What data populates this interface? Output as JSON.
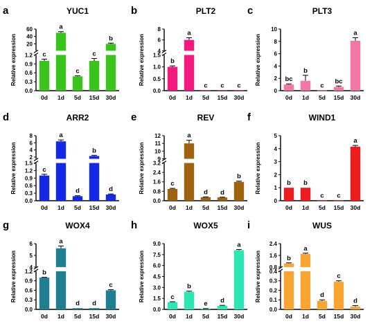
{
  "chart_data": [
    {
      "type": "bar",
      "letter": "a",
      "title": "YUC1",
      "ylabel": "Relative expression",
      "color": "#39c51c",
      "categories": [
        "0d",
        "1d",
        "5d",
        "15d",
        "30d"
      ],
      "values": [
        1.0,
        50,
        0.48,
        1.0,
        20
      ],
      "errors": [
        0.06,
        3,
        0.02,
        0.08,
        2
      ],
      "letters": [
        "c",
        "a",
        "c",
        "c",
        "b"
      ],
      "ylim": [
        0,
        60
      ],
      "axis_break": {
        "lower_max": 1.2,
        "upper_min": 1.2
      },
      "yticks_lower": [
        "0.0",
        "0.3",
        "0.6",
        "0.9",
        "1.2"
      ],
      "yticks_upper": [
        "20",
        "40",
        "60"
      ]
    },
    {
      "type": "bar",
      "letter": "b",
      "title": "PLT2",
      "ylabel": "Relative expression",
      "color": "#f3197f",
      "categories": [
        "0d",
        "1d",
        "5d",
        "15d",
        "30d"
      ],
      "values": [
        1.0,
        6.0,
        0.02,
        0.02,
        0.02
      ],
      "errors": [
        0.04,
        0.4,
        0,
        0,
        0
      ],
      "letters": [
        "b",
        "a",
        "c",
        "c",
        "c"
      ],
      "ylim": [
        0,
        8
      ],
      "axis_break": {
        "lower_max": 1.5,
        "upper_min": 4
      },
      "yticks_lower": [
        "0.0",
        "0.5",
        "1.0",
        "1.5"
      ],
      "yticks_upper": [
        "4",
        "6",
        "8"
      ]
    },
    {
      "type": "bar",
      "letter": "c",
      "title": "PLT3",
      "ylabel": "Relative expression",
      "color": "#f476a7",
      "categories": [
        "0d",
        "1d",
        "5d",
        "15d",
        "30d"
      ],
      "values": [
        1.0,
        1.6,
        0.05,
        0.6,
        8.1
      ],
      "errors": [
        0.1,
        0.9,
        0,
        0.15,
        0.5
      ],
      "letters": [
        "bc",
        "b",
        "c",
        "bc",
        "a"
      ],
      "ylim": [
        0,
        10
      ],
      "yticks": [
        "0",
        "2",
        "4",
        "6",
        "8",
        "10"
      ]
    },
    {
      "type": "bar",
      "letter": "d",
      "title": "ARR2",
      "ylabel": "Relative expression",
      "color": "#1229e8",
      "categories": [
        "0d",
        "1d",
        "5d",
        "15d",
        "30d"
      ],
      "values": [
        1.0,
        6.4,
        0.18,
        2.3,
        0.25
      ],
      "errors": [
        0.05,
        0.4,
        0.02,
        0.2,
        0.02
      ],
      "letters": [
        "c",
        "a",
        "d",
        "b",
        "d"
      ],
      "ylim": [
        0,
        8
      ],
      "axis_break": {
        "lower_max": 1.5,
        "upper_min": 1.5
      },
      "yticks_lower": [
        "0.0",
        "0.3",
        "0.6",
        "0.9",
        "1.2",
        "1.5"
      ],
      "yticks_upper": [
        "2",
        "4",
        "6",
        "8"
      ]
    },
    {
      "type": "bar",
      "letter": "e",
      "title": "REV",
      "ylabel": "Relative expression",
      "color": "#a0620f",
      "categories": [
        "0d",
        "1d",
        "5d",
        "15d",
        "30d"
      ],
      "values": [
        1.0,
        11.0,
        0.3,
        0.28,
        1.6
      ],
      "errors": [
        0.05,
        0.4,
        0.02,
        0.02,
        0.06
      ],
      "letters": [
        "c",
        "a",
        "d",
        "d",
        "b"
      ],
      "ylim": [
        0,
        12
      ],
      "axis_break": {
        "lower_max": 3.2,
        "upper_min": 9
      },
      "yticks_lower": [
        "0.0",
        "0.8",
        "1.6",
        "2.4",
        "3.2"
      ],
      "yticks_upper": [
        "9",
        "10",
        "11",
        "12"
      ]
    },
    {
      "type": "bar",
      "letter": "f",
      "title": "WIND1",
      "ylabel": "Relative expression",
      "color": "#ec1c1f",
      "categories": [
        "0d",
        "1d",
        "5d",
        "15d",
        "30d"
      ],
      "values": [
        1.0,
        1.0,
        0.02,
        0.02,
        4.15
      ],
      "errors": [
        0,
        0,
        0,
        0,
        0.1
      ],
      "letters": [
        "b",
        "b",
        "c",
        "c",
        "a"
      ],
      "ylim": [
        0,
        5
      ],
      "yticks": [
        "0",
        "1",
        "2",
        "3",
        "4",
        "5"
      ]
    },
    {
      "type": "bar",
      "letter": "g",
      "title": "WOX4",
      "ylabel": "Relative expression",
      "color": "#1f7f90",
      "categories": [
        "0d",
        "1d",
        "5d",
        "15d",
        "30d"
      ],
      "values": [
        1.0,
        5.6,
        0.04,
        0.04,
        0.6
      ],
      "errors": [
        0.01,
        0.2,
        0,
        0,
        0.02
      ],
      "letters": [
        "b",
        "a",
        "d",
        "d",
        "c"
      ],
      "ylim": [
        0,
        6
      ],
      "axis_break": {
        "lower_max": 1.2,
        "upper_min": 4
      },
      "yticks_lower": [
        "0.0",
        "0.3",
        "0.6",
        "0.9",
        "1.2"
      ],
      "yticks_upper": [
        "4",
        "5",
        "6"
      ]
    },
    {
      "type": "bar",
      "letter": "h",
      "title": "WOX5",
      "ylabel": "Relative expression",
      "color": "#2ee6b3",
      "categories": [
        "0d",
        "1d",
        "5d",
        "15d",
        "30d"
      ],
      "values": [
        1.0,
        2.4,
        0.1,
        0.5,
        8.1
      ],
      "errors": [
        0.05,
        0.1,
        0.02,
        0.05,
        0.1
      ],
      "letters": [
        "c",
        "b",
        "e",
        "d",
        "a"
      ],
      "ylim": [
        0,
        9
      ],
      "yticks": [
        "0.0",
        "1.5",
        "3.0",
        "4.5",
        "6.0",
        "7.5",
        "9.0"
      ]
    },
    {
      "type": "bar",
      "letter": "i",
      "title": "WUS",
      "ylabel": "Relative expression",
      "color": "#f9a531",
      "categories": [
        "0d",
        "1d",
        "5d",
        "15d",
        "30d"
      ],
      "values": [
        1.05,
        1.7,
        0.09,
        0.29,
        0.03
      ],
      "errors": [
        0.04,
        0.05,
        0.01,
        0.01,
        0.01
      ],
      "letters": [
        "b",
        "a",
        "d",
        "c",
        "d"
      ],
      "ylim": [
        0,
        2.4
      ],
      "axis_break": {
        "lower_max": 0.4,
        "upper_min": 0.8
      },
      "yticks_lower": [
        "0.0",
        "0.1",
        "0.2",
        "0.3",
        "0.4"
      ],
      "yticks_upper": [
        "0.8",
        "1.6",
        "2.4"
      ]
    }
  ]
}
